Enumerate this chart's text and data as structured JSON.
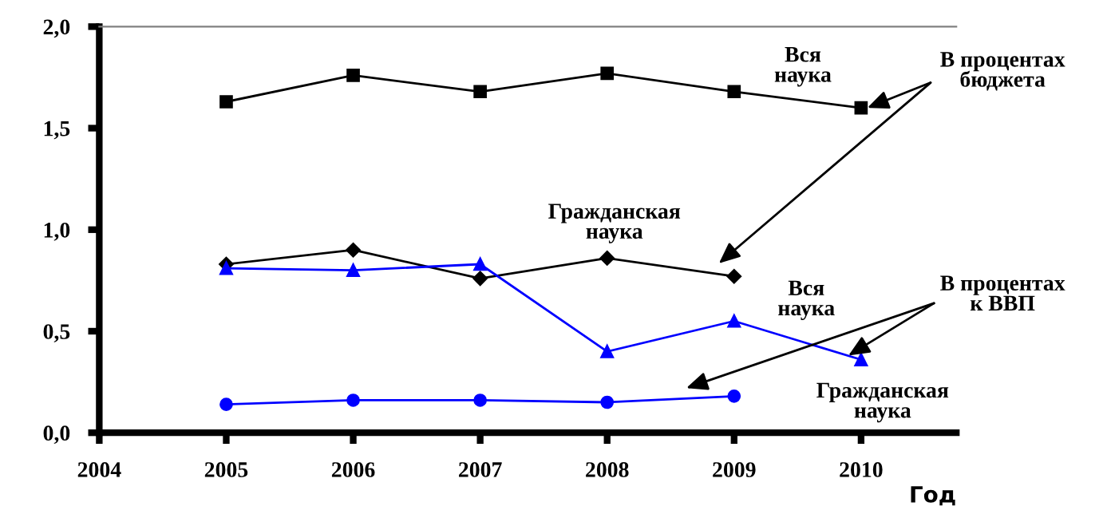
{
  "chart_data": {
    "type": "line",
    "xlabel": "Год",
    "x": [
      2005,
      2006,
      2007,
      2008,
      2009,
      2010
    ],
    "xlim": [
      2004,
      2010.75
    ],
    "xticks": [
      2004,
      2005,
      2006,
      2007,
      2008,
      2009,
      2010
    ],
    "ylim": [
      0,
      2.0
    ],
    "yticks": [
      {
        "value": 0,
        "label": "0,0"
      },
      {
        "value": 0.5,
        "label": "0,5"
      },
      {
        "value": 1.0,
        "label": "1,0"
      },
      {
        "value": 1.5,
        "label": "1,5"
      },
      {
        "value": 2.0,
        "label": "2,0"
      }
    ],
    "grid": false,
    "legend": false,
    "series": [
      {
        "color": "#000000",
        "marker": "square",
        "values": [
          1.63,
          1.76,
          1.68,
          1.77,
          1.68,
          1.6
        ]
      },
      {
        "color": "#000000",
        "marker": "diamond",
        "values": [
          0.83,
          0.9,
          0.76,
          0.86,
          0.77,
          null
        ]
      },
      {
        "color": "#0000ff",
        "marker": "triangle",
        "values": [
          0.81,
          0.8,
          0.83,
          0.4,
          0.55,
          0.36
        ]
      },
      {
        "color": "#0000ff",
        "marker": "circle",
        "values": [
          0.14,
          0.16,
          0.16,
          0.15,
          0.18,
          null
        ]
      }
    ],
    "annotations": [
      "Вся\nнаука",
      "Гражданская\nнаука",
      "Вся\nнаука",
      "Гражданская\nнаука",
      {
        "text": "В процентах\nбюджета",
        "x": 2010.05,
        "y": 1.6
      },
      {
        "text": "В процентах\nк ВВП",
        "x": 2009.9,
        "y": 0.38
      }
    ]
  }
}
